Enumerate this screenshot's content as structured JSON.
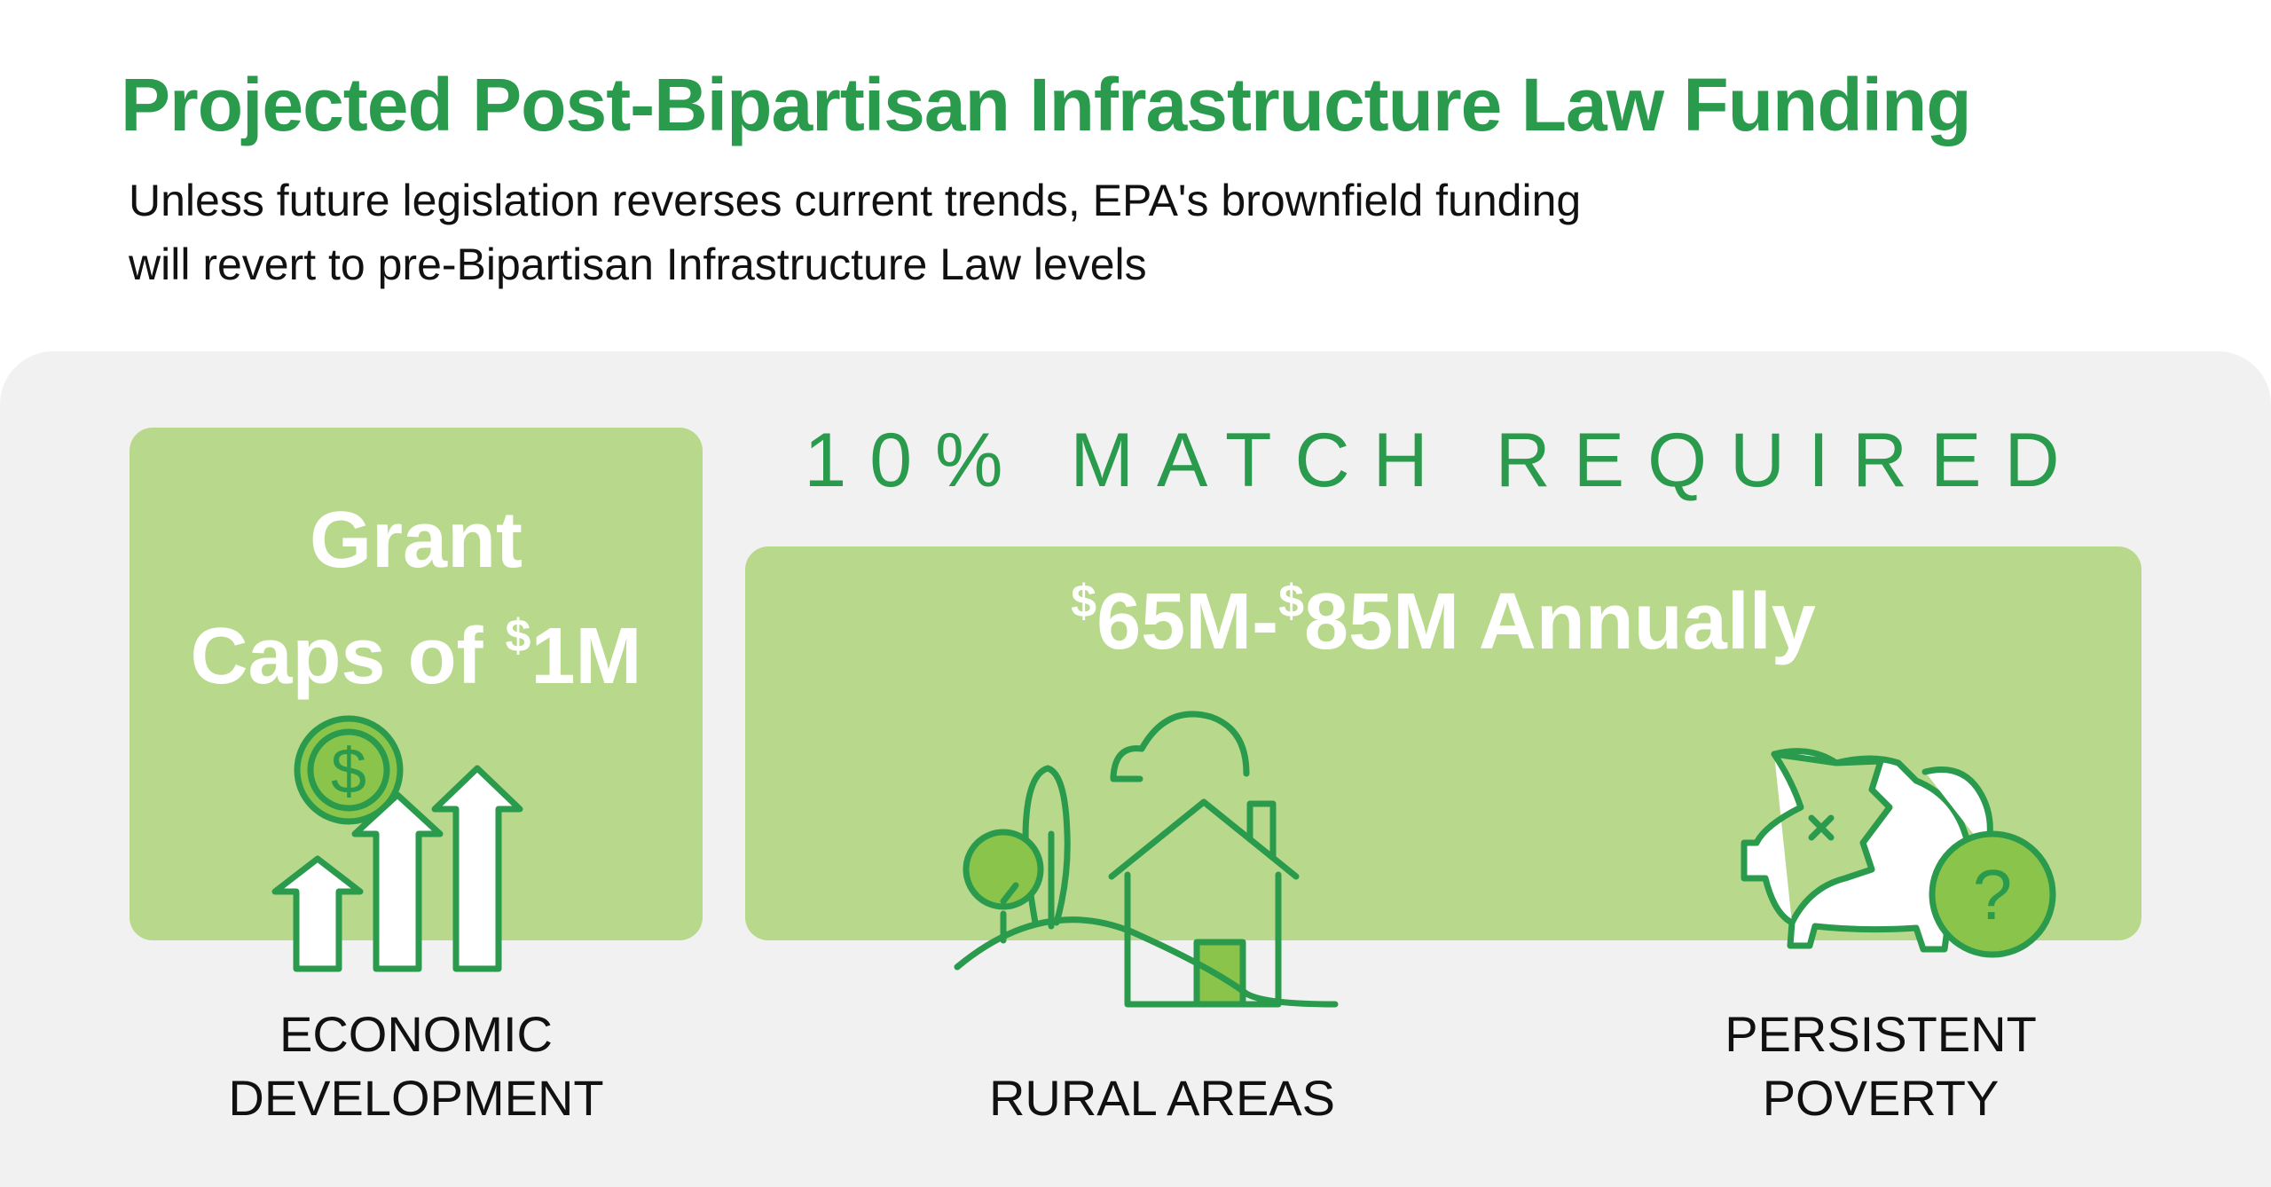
{
  "header": {
    "title": "Projected Post-Bipartisan Infrastructure Law Funding",
    "subtitle_line1": "Unless future legislation reverses current trends, EPA's brownfield funding",
    "subtitle_line2": "will revert to pre-Bipartisan Infrastructure Law levels"
  },
  "grant_card": {
    "line1": "Grant",
    "line2_prefix": "Caps of ",
    "line2_currency": "$",
    "line2_amount": "1M",
    "icon": "dollar-growth-arrows-icon",
    "label_line1": "ECONOMIC",
    "label_line2": "DEVELOPMENT"
  },
  "match_heading": "10% MATCH REQUIRED",
  "annual_card": {
    "currency1": "$",
    "amount1": "65M-",
    "currency2": "$",
    "amount2": "85M Annually"
  },
  "categories": [
    {
      "icon": "rural-house-icon",
      "label_line1": "RURAL AREAS"
    },
    {
      "icon": "broken-piggy-bank-icon",
      "label_line1": "PERSISTENT",
      "label_line2": "POVERTY"
    }
  ],
  "colors": {
    "accent_green": "#2a9a4c",
    "light_green": "#b8d98c",
    "icon_green": "#8bc44a",
    "panel_gray": "#f1f1f1"
  }
}
